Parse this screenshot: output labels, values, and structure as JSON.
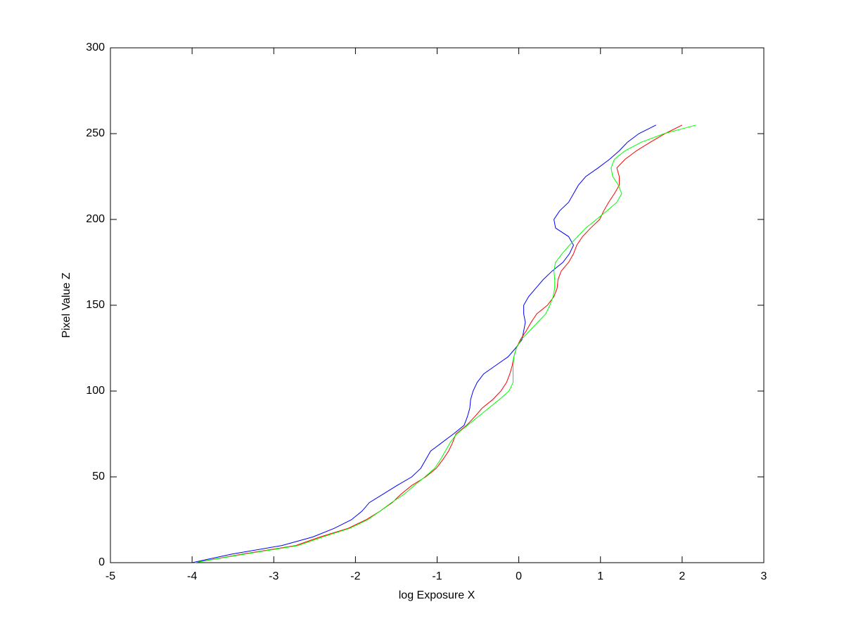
{
  "chart_data": {
    "type": "line",
    "xlabel": "log Exposure X",
    "ylabel": "Pixel Value Z",
    "xlim": [
      -5,
      3
    ],
    "ylim": [
      0,
      300
    ],
    "xticks": [
      -5,
      -4,
      -3,
      -2,
      -1,
      0,
      1,
      2,
      3
    ],
    "yticks": [
      0,
      50,
      100,
      150,
      200,
      250,
      300
    ],
    "grid": false,
    "series": [
      {
        "color": "#0000ff",
        "x": [
          -4.0,
          -3.51,
          -2.9,
          -2.52,
          -2.26,
          -2.05,
          -1.92,
          -1.83,
          -1.66,
          -1.49,
          -1.31,
          -1.2,
          -1.14,
          -1.08,
          -0.94,
          -0.8,
          -0.67,
          -0.63,
          -0.6,
          -0.59,
          -0.56,
          -0.51,
          -0.43,
          -0.28,
          -0.13,
          -0.04,
          0.04,
          0.06,
          0.08,
          0.06,
          0.06,
          0.12,
          0.21,
          0.3,
          0.41,
          0.54,
          0.62,
          0.67,
          0.61,
          0.45,
          0.43,
          0.5,
          0.61,
          0.67,
          0.73,
          0.82,
          0.97,
          1.11,
          1.23,
          1.33,
          1.47,
          1.68
        ],
        "values": [
          0,
          5,
          10,
          15,
          20,
          25,
          30,
          35,
          40,
          45,
          50,
          55,
          60,
          65,
          70,
          75,
          80,
          85,
          90,
          95,
          100,
          105,
          110,
          115,
          120,
          125,
          130,
          135,
          140,
          145,
          150,
          155,
          160,
          165,
          170,
          175,
          180,
          185,
          190,
          195,
          200,
          205,
          210,
          215,
          220,
          225,
          230,
          235,
          240,
          245,
          250,
          255
        ]
      },
      {
        "color": "#ff0000",
        "x": [
          -3.97,
          -3.38,
          -2.73,
          -2.43,
          -2.09,
          -1.87,
          -1.7,
          -1.55,
          -1.44,
          -1.31,
          -1.14,
          -1.01,
          -0.93,
          -0.86,
          -0.81,
          -0.77,
          -0.64,
          -0.54,
          -0.45,
          -0.32,
          -0.22,
          -0.15,
          -0.11,
          -0.08,
          -0.06,
          -0.03,
          0.02,
          0.09,
          0.15,
          0.22,
          0.35,
          0.43,
          0.47,
          0.48,
          0.52,
          0.61,
          0.67,
          0.71,
          0.78,
          0.88,
          0.99,
          1.04,
          1.1,
          1.17,
          1.23,
          1.23,
          1.2,
          1.3,
          1.44,
          1.61,
          1.79,
          2.0
        ],
        "values": [
          0,
          5,
          10,
          15,
          20,
          25,
          30,
          35,
          40,
          45,
          50,
          55,
          60,
          65,
          70,
          75,
          80,
          85,
          90,
          95,
          100,
          105,
          110,
          115,
          120,
          125,
          130,
          135,
          140,
          145,
          150,
          155,
          160,
          165,
          170,
          175,
          180,
          185,
          190,
          195,
          200,
          205,
          210,
          215,
          220,
          225,
          230,
          235,
          240,
          245,
          250,
          255
        ]
      },
      {
        "color": "#00ff00",
        "x": [
          -3.97,
          -3.35,
          -2.7,
          -2.4,
          -2.07,
          -1.85,
          -1.7,
          -1.56,
          -1.4,
          -1.28,
          -1.15,
          -1.03,
          -0.96,
          -0.9,
          -0.84,
          -0.76,
          -0.63,
          -0.5,
          -0.37,
          -0.24,
          -0.12,
          -0.07,
          -0.07,
          -0.07,
          -0.06,
          -0.03,
          0.03,
          0.13,
          0.23,
          0.33,
          0.38,
          0.42,
          0.44,
          0.44,
          0.43,
          0.45,
          0.53,
          0.62,
          0.72,
          0.82,
          0.95,
          1.08,
          1.2,
          1.26,
          1.22,
          1.15,
          1.13,
          1.17,
          1.3,
          1.5,
          1.78,
          2.17
        ],
        "values": [
          0,
          5,
          10,
          15,
          20,
          25,
          30,
          35,
          40,
          45,
          50,
          55,
          60,
          65,
          70,
          75,
          80,
          85,
          90,
          95,
          100,
          105,
          110,
          115,
          120,
          125,
          130,
          135,
          140,
          145,
          150,
          155,
          160,
          165,
          170,
          175,
          180,
          185,
          190,
          195,
          200,
          205,
          210,
          215,
          220,
          225,
          230,
          235,
          240,
          245,
          250,
          255
        ]
      }
    ]
  }
}
